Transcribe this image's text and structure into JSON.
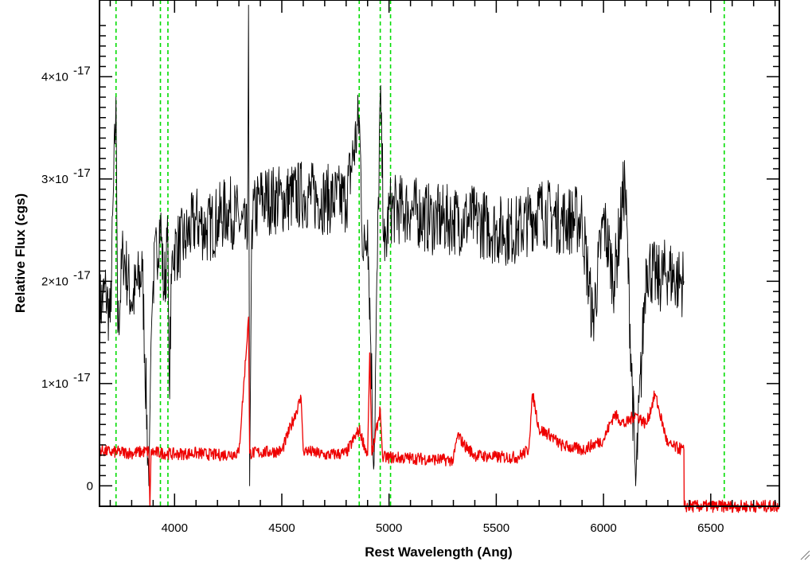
{
  "chart_data": {
    "type": "line",
    "title": "",
    "xlabel": "Rest Wavelength (Ang)",
    "ylabel": "Relative Flux (cgs)",
    "xlim": [
      3650,
      6820
    ],
    "ylim": [
      -0.2,
      4.75
    ],
    "y_scale_exponent": -17,
    "x_ticks": [
      {
        "value": 4000,
        "label": "4000"
      },
      {
        "value": 4500,
        "label": "4500"
      },
      {
        "value": 5000,
        "label": "5000"
      },
      {
        "value": 5500,
        "label": "5500"
      },
      {
        "value": 6000,
        "label": "6000"
      },
      {
        "value": 6500,
        "label": "6500"
      }
    ],
    "y_ticks": [
      {
        "value": 0,
        "label": "0",
        "exponent": ""
      },
      {
        "value": 1,
        "label": "1×10",
        "exponent": "-17"
      },
      {
        "value": 2,
        "label": "2×10",
        "exponent": "-17"
      },
      {
        "value": 3,
        "label": "3×10",
        "exponent": "-17"
      },
      {
        "value": 4,
        "label": "4×10",
        "exponent": "-17"
      }
    ],
    "grid": false,
    "vertical_markers": {
      "style": "dashed",
      "color": "#00dd00",
      "x": [
        3727,
        3934,
        3969,
        4861,
        4959,
        5007,
        6563
      ]
    },
    "series": [
      {
        "color": "#000000",
        "description_points": [
          [
            3650,
            1.75
          ],
          [
            3680,
            1.9
          ],
          [
            3700,
            1.6
          ],
          [
            3727,
            3.8
          ],
          [
            3735,
            1.5
          ],
          [
            3760,
            2.3
          ],
          [
            3800,
            1.8
          ],
          [
            3850,
            2.1
          ],
          [
            3880,
            0.0
          ],
          [
            3890,
            1.4
          ],
          [
            3900,
            2.0
          ],
          [
            3934,
            2.6
          ],
          [
            3950,
            1.9
          ],
          [
            3969,
            2.4
          ],
          [
            3975,
            1.0
          ],
          [
            3990,
            2.3
          ],
          [
            4050,
            2.4
          ],
          [
            4100,
            2.6
          ],
          [
            4150,
            2.5
          ],
          [
            4200,
            2.6
          ],
          [
            4250,
            2.7
          ],
          [
            4300,
            2.6
          ],
          [
            4340,
            2.4
          ],
          [
            4345,
            4.7
          ],
          [
            4350,
            0.0
          ],
          [
            4360,
            2.6
          ],
          [
            4400,
            2.8
          ],
          [
            4500,
            2.8
          ],
          [
            4600,
            2.85
          ],
          [
            4700,
            2.8
          ],
          [
            4800,
            2.8
          ],
          [
            4861,
            3.6
          ],
          [
            4880,
            2.2
          ],
          [
            4900,
            2.6
          ],
          [
            4930,
            0.2
          ],
          [
            4959,
            3.8
          ],
          [
            4980,
            2.2
          ],
          [
            5000,
            2.7
          ],
          [
            5100,
            2.7
          ],
          [
            5200,
            2.6
          ],
          [
            5300,
            2.6
          ],
          [
            5400,
            2.6
          ],
          [
            5500,
            2.5
          ],
          [
            5600,
            2.5
          ],
          [
            5650,
            2.6
          ],
          [
            5700,
            2.7
          ],
          [
            5800,
            2.6
          ],
          [
            5900,
            2.6
          ],
          [
            5950,
            1.6
          ],
          [
            6000,
            2.6
          ],
          [
            6050,
            2.0
          ],
          [
            6100,
            3.0
          ],
          [
            6150,
            0.0
          ],
          [
            6200,
            2.2
          ],
          [
            6250,
            2.0
          ],
          [
            6300,
            2.1
          ],
          [
            6350,
            2.0
          ],
          [
            6375,
            2.0
          ]
        ],
        "noise_amplitude": 0.35
      },
      {
        "color": "#ee0000",
        "description_points": [
          [
            3650,
            0.35
          ],
          [
            3700,
            0.33
          ],
          [
            3750,
            0.33
          ],
          [
            3800,
            0.32
          ],
          [
            3880,
            0.34
          ],
          [
            3885,
            -0.2
          ],
          [
            3890,
            0.33
          ],
          [
            4000,
            0.31
          ],
          [
            4100,
            0.32
          ],
          [
            4200,
            0.3
          ],
          [
            4300,
            0.32
          ],
          [
            4345,
            1.65
          ],
          [
            4350,
            0.32
          ],
          [
            4500,
            0.34
          ],
          [
            4590,
            0.86
          ],
          [
            4600,
            0.35
          ],
          [
            4700,
            0.3
          ],
          [
            4800,
            0.32
          ],
          [
            4861,
            0.55
          ],
          [
            4900,
            0.3
          ],
          [
            4910,
            1.3
          ],
          [
            4920,
            0.3
          ],
          [
            4959,
            0.75
          ],
          [
            4970,
            0.28
          ],
          [
            5100,
            0.27
          ],
          [
            5200,
            0.26
          ],
          [
            5300,
            0.25
          ],
          [
            5320,
            0.5
          ],
          [
            5350,
            0.4
          ],
          [
            5400,
            0.3
          ],
          [
            5500,
            0.28
          ],
          [
            5600,
            0.28
          ],
          [
            5650,
            0.35
          ],
          [
            5670,
            0.9
          ],
          [
            5700,
            0.55
          ],
          [
            5750,
            0.5
          ],
          [
            5800,
            0.4
          ],
          [
            5900,
            0.35
          ],
          [
            6000,
            0.45
          ],
          [
            6050,
            0.7
          ],
          [
            6100,
            0.6
          ],
          [
            6150,
            0.7
          ],
          [
            6200,
            0.6
          ],
          [
            6240,
            0.9
          ],
          [
            6300,
            0.4
          ],
          [
            6375,
            0.35
          ],
          [
            6376,
            -0.2
          ],
          [
            6820,
            -0.2
          ]
        ],
        "noise_amplitude": 0.06
      }
    ]
  }
}
